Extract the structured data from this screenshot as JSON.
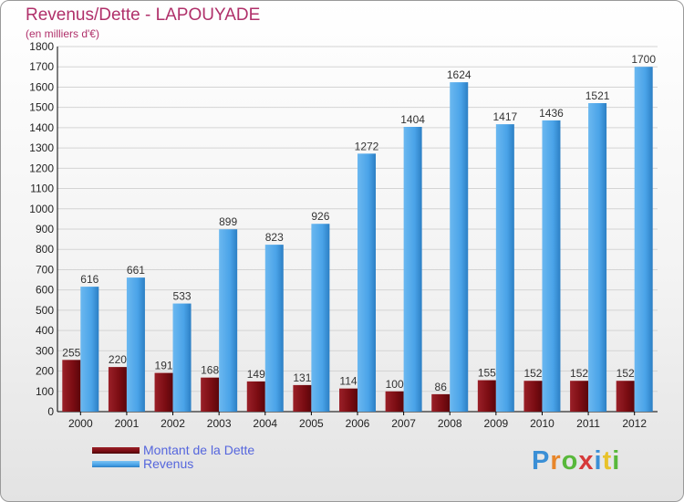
{
  "header": {
    "title": "Revenus/Dette - LAPOUYADE",
    "subtitle": "(en milliers d'€)"
  },
  "legend": {
    "dette_label": "Montant de la Dette",
    "revenus_label": "Revenus"
  },
  "logo": {
    "text": "Proxiti",
    "letters": [
      "P",
      "r",
      "o",
      "x",
      "i",
      "t",
      "i"
    ],
    "colors": [
      "#3a8fd6",
      "#e8862a",
      "#58b83a",
      "#d63a3a",
      "#3a8fd6",
      "#e8c22a",
      "#58b83a"
    ]
  },
  "colors": {
    "dette": "#7a0c12",
    "revenus": "#4aa3e8"
  },
  "chart_data": {
    "type": "bar",
    "title": "Revenus/Dette - LAPOUYADE",
    "subtitle": "(en milliers d'€)",
    "categories": [
      "2000",
      "2001",
      "2002",
      "2003",
      "2004",
      "2005",
      "2006",
      "2007",
      "2008",
      "2009",
      "2010",
      "2011",
      "2012"
    ],
    "series": [
      {
        "name": "Montant de la Dette",
        "values": [
          255,
          220,
          191,
          168,
          149,
          131,
          114,
          100,
          86,
          155,
          152,
          152,
          152
        ]
      },
      {
        "name": "Revenus",
        "values": [
          616,
          661,
          533,
          899,
          823,
          926,
          1272,
          1404,
          1624,
          1417,
          1436,
          1521,
          1700
        ]
      }
    ],
    "ylim": [
      0,
      1800
    ],
    "yticks": [
      0,
      100,
      200,
      300,
      400,
      500,
      600,
      700,
      800,
      900,
      1000,
      1100,
      1200,
      1300,
      1400,
      1500,
      1600,
      1700,
      1800
    ],
    "grid": true,
    "legend_position": "bottom-left"
  }
}
